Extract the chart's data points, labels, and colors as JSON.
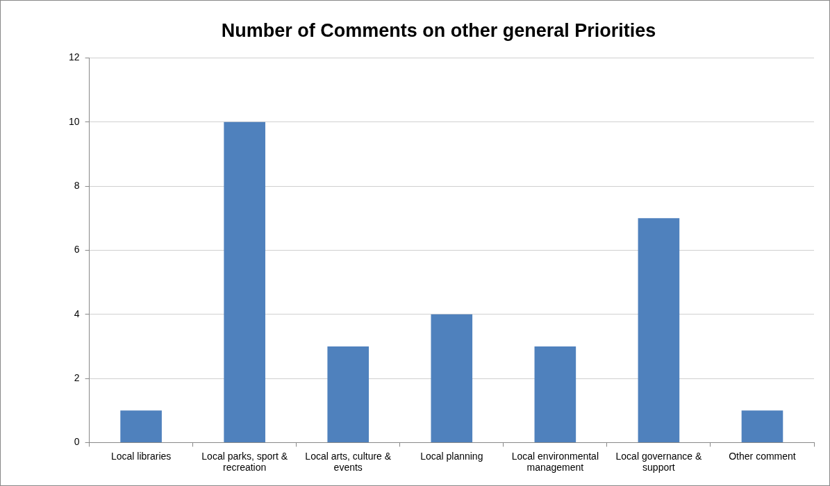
{
  "chart_data": {
    "type": "bar",
    "title": "Number of Comments on other general Priorities",
    "categories": [
      "Local libraries",
      "Local parks, sport & recreation",
      "Local arts, culture & events",
      "Local planning",
      "Local environmental management",
      "Local governance & support",
      "Other comment"
    ],
    "values": [
      1,
      10,
      3,
      4,
      3,
      7,
      1
    ],
    "color": "#4f81bd",
    "ylim": [
      0,
      12
    ],
    "yticks": [
      0,
      2,
      4,
      6,
      8,
      10,
      12
    ],
    "grid": "y"
  }
}
